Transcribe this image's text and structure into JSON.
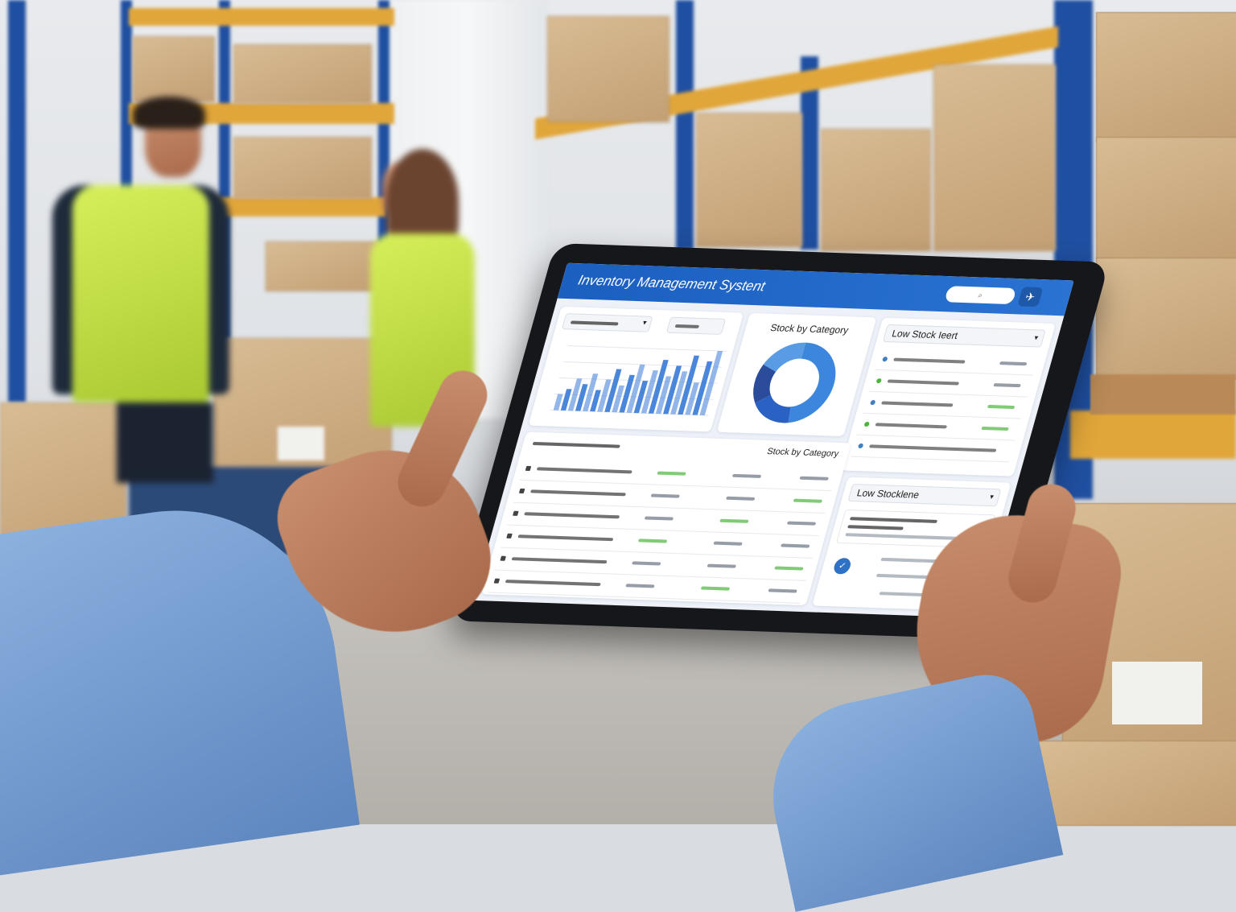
{
  "scene": {
    "colors": {
      "shelf_post": "#1f4fa0",
      "shelf_beam": "#e1a63a",
      "vest": "#c9e34a",
      "shirt": "#7ea6d8"
    }
  },
  "tablet": {
    "header": {
      "title": "Inventory Management Systent",
      "search_icon": "search-icon",
      "action_icon": "airplane-icon",
      "color": "#1f64c4"
    },
    "filters": {
      "dropdown_icon": "chevron-down-icon"
    },
    "stock_by_category": {
      "title": "Stock by Category",
      "accent": "#3c82dc"
    },
    "low_stock_alert": {
      "title": "Low Stock Ieert",
      "rows": 5
    },
    "low_stock_panel": {
      "title": "Low Stocklene",
      "badge_icon": "check-icon"
    },
    "stock_table": {
      "right_heading": "Stock by Category",
      "rows": 6,
      "positive_color": "#4cb33c"
    }
  },
  "chart_data": [
    {
      "type": "bar",
      "values": [
        3,
        4,
        6,
        5,
        7,
        4,
        6,
        8,
        5,
        7,
        9,
        6,
        8,
        10,
        7,
        9,
        8,
        11,
        6,
        10,
        12
      ],
      "color": "#4a86da"
    },
    {
      "type": "pie",
      "title": "Stock by Category",
      "values": [
        48,
        18,
        16,
        18
      ],
      "colors": [
        "#3c86de",
        "#2a62c4",
        "#2a4c9a",
        "#5a9be6"
      ]
    }
  ]
}
